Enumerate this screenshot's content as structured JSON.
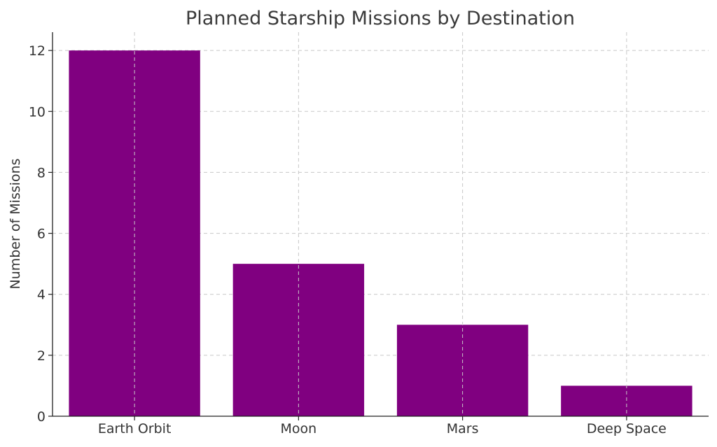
{
  "chart_data": {
    "type": "bar",
    "title": "Planned Starship Missions by Destination",
    "xlabel": "",
    "ylabel": "Number of Missions",
    "categories": [
      "Earth Orbit",
      "Moon",
      "Mars",
      "Deep Space"
    ],
    "values": [
      12,
      5,
      3,
      1
    ],
    "ylim": [
      0,
      12.6
    ],
    "yticks": [
      0,
      2,
      4,
      6,
      8,
      10,
      12
    ],
    "grid": true,
    "bar_color": "#800080",
    "legend": "none"
  }
}
